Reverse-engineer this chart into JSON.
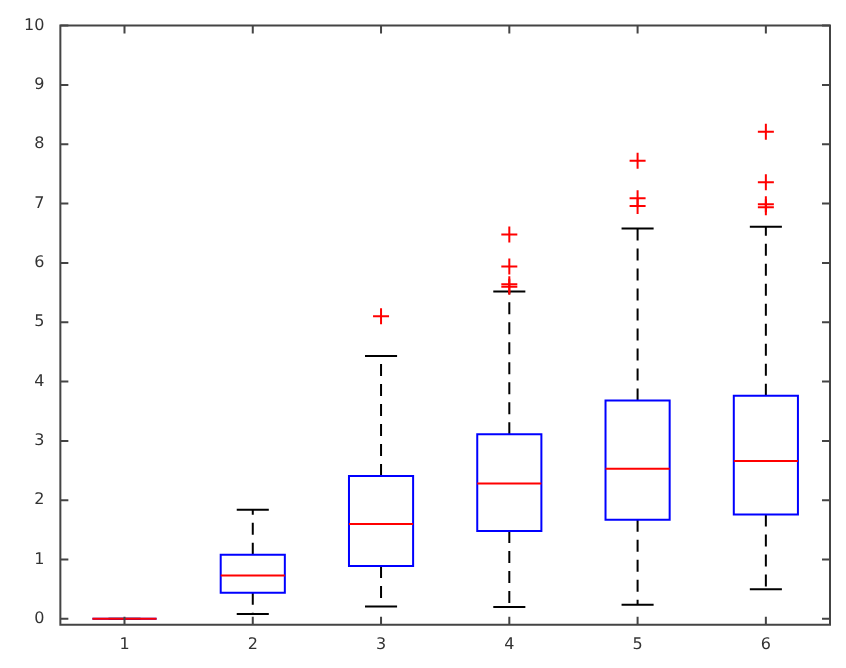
{
  "chart_data": {
    "type": "box",
    "categories": [
      "1",
      "2",
      "3",
      "4",
      "5",
      "6"
    ],
    "boxes": [
      {
        "low": 0,
        "q1": 0,
        "median": 0,
        "q3": 0,
        "high": 0
      },
      {
        "low": 0.08,
        "q1": 0.44,
        "median": 0.73,
        "q3": 1.08,
        "high": 1.84
      },
      {
        "low": 0.21,
        "q1": 0.89,
        "median": 1.6,
        "q3": 2.41,
        "high": 4.43,
        "outliers": [
          5.1
        ]
      },
      {
        "low": 0.2,
        "q1": 1.48,
        "median": 2.28,
        "q3": 3.11,
        "high": 5.52,
        "outliers": [
          6.48,
          5.94,
          5.64,
          5.6
        ]
      },
      {
        "low": 0.24,
        "q1": 1.67,
        "median": 2.53,
        "q3": 3.68,
        "high": 6.58,
        "outliers": [
          7.72,
          7.09,
          6.96
        ]
      },
      {
        "low": 0.5,
        "q1": 1.76,
        "median": 2.66,
        "q3": 3.76,
        "high": 6.61,
        "outliers": [
          8.21,
          7.36,
          6.99,
          6.94
        ]
      }
    ],
    "color": "#0000ff",
    "ylim": [
      -0.1,
      10
    ],
    "yticks": [
      0,
      1,
      2,
      3,
      4,
      5,
      6,
      7,
      8,
      9,
      10
    ],
    "grid": false,
    "legend": false,
    "marker": "cross"
  }
}
